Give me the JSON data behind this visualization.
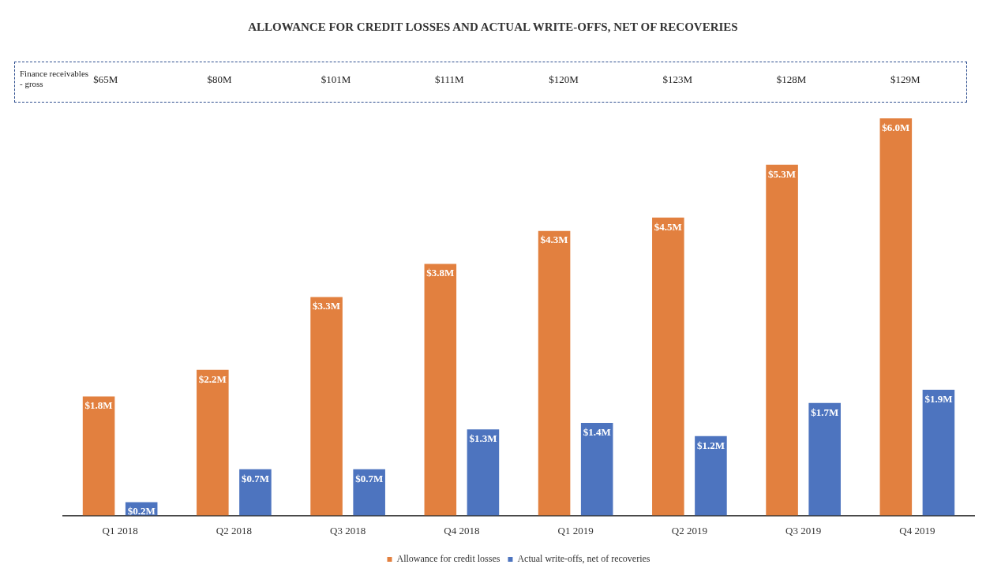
{
  "chart_data": {
    "type": "bar",
    "title": "ALLOWANCE FOR CREDIT LOSSES AND ACTUAL WRITE-OFFS, NET OF RECOVERIES",
    "categories": [
      "Q1 2018",
      "Q2 2018",
      "Q3 2018",
      "Q4 2018",
      "Q1 2019",
      "Q2 2019",
      "Q3 2019",
      "Q4 2019"
    ],
    "series": [
      {
        "name": "Allowance for credit losses",
        "color": "#e2803f",
        "values": [
          1.8,
          2.2,
          3.3,
          3.8,
          4.3,
          4.5,
          5.3,
          6.0
        ],
        "value_labels": [
          "$1.8M",
          "$2.2M",
          "$3.3M",
          "$3.8M",
          "$4.3M",
          "$4.5M",
          "$5.3M",
          "$6.0M"
        ]
      },
      {
        "name": "Actual write-offs, net of recoveries",
        "color": "#4d74bf",
        "values": [
          0.2,
          0.7,
          0.7,
          1.3,
          1.4,
          1.2,
          1.7,
          1.9
        ],
        "value_labels": [
          "$0.2M",
          "$0.7M",
          "$0.7M",
          "$1.3M",
          "$1.4M",
          "$1.2M",
          "$1.7M",
          "$1.9M"
        ]
      }
    ],
    "annotations": [
      "Finance receivables - gross",
      "$65M",
      "$80M",
      "$101M",
      "$111M",
      "$120M",
      "$123M",
      "$128M",
      "$129M"
    ],
    "grid": false,
    "legend": "bottom",
    "tick_labels": "x"
  }
}
